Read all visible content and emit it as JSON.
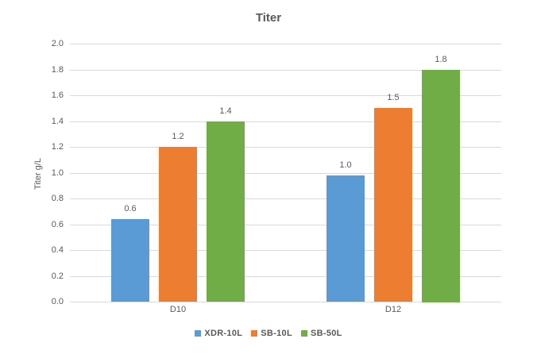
{
  "chart_data": {
    "type": "bar",
    "title": "Titer",
    "xlabel": "",
    "ylabel": "Titer g/L",
    "categories": [
      "D10",
      "D12"
    ],
    "series": [
      {
        "name": "XDR-10L",
        "color": "#5B9BD5",
        "values": [
          0.64,
          0.98
        ],
        "data_labels": [
          "0.6",
          "1.0"
        ]
      },
      {
        "name": "SB-10L",
        "color": "#ED7D31",
        "values": [
          1.2,
          1.5
        ],
        "data_labels": [
          "1.2",
          "1.5"
        ]
      },
      {
        "name": "SB-50L",
        "color": "#70AD47",
        "values": [
          1.4,
          1.8
        ],
        "data_labels": [
          "1.4",
          "1.8"
        ]
      }
    ],
    "ylim": [
      0.0,
      2.0
    ],
    "ytick_step": 0.2,
    "yticks": [
      "0.0",
      "0.2",
      "0.4",
      "0.6",
      "0.8",
      "1.0",
      "1.2",
      "1.4",
      "1.6",
      "1.8",
      "2.0"
    ],
    "grid": true,
    "legend_position": "bottom",
    "colors": {
      "text": "#595959",
      "gridline": "#d9d9d9",
      "background": "#ffffff"
    }
  }
}
